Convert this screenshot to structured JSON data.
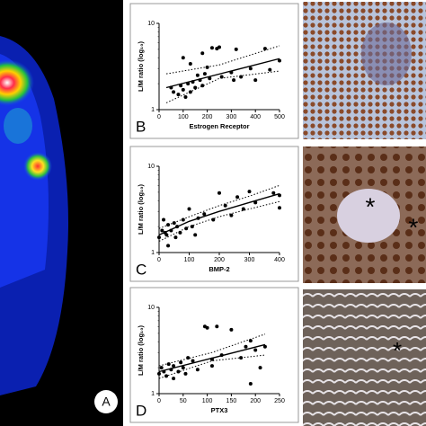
{
  "panel_a_label": "A",
  "chart_data": [
    {
      "type": "scatter",
      "label": "B",
      "xlabel": "Estrogen Receptor",
      "ylabel": "L/M ratio (log₁₀)",
      "xlim": [
        0,
        500
      ],
      "xticks": [
        0,
        100,
        200,
        300,
        400,
        500
      ],
      "ylim": [
        1,
        10
      ],
      "yticks": [
        1,
        10
      ],
      "log_y": true,
      "points": {
        "x": [
          50,
          60,
          80,
          90,
          100,
          110,
          120,
          130,
          140,
          150,
          160,
          170,
          180,
          190,
          200,
          210,
          220,
          240,
          250,
          130,
          100,
          180,
          260,
          300,
          310,
          320,
          340,
          380,
          400,
          440,
          460,
          500
        ],
        "y": [
          1.8,
          1.6,
          1.5,
          1.9,
          1.7,
          1.4,
          2.0,
          1.6,
          2.1,
          1.8,
          2.5,
          2.2,
          1.9,
          2.6,
          3.1,
          2.3,
          5.2,
          5.1,
          5.3,
          3.4,
          4.0,
          4.5,
          2.4,
          2.7,
          2.2,
          5.0,
          2.4,
          3.0,
          2.2,
          5.1,
          2.9,
          3.7
        ]
      },
      "fit": {
        "x": [
          30,
          500
        ],
        "y": [
          1.8,
          3.9
        ]
      },
      "ci_upper": {
        "x": [
          30,
          250,
          500
        ],
        "y": [
          2.6,
          3.3,
          5.5
        ]
      },
      "ci_lower": {
        "x": [
          30,
          250,
          500
        ],
        "y": [
          1.2,
          2.3,
          2.8
        ]
      }
    },
    {
      "type": "scatter",
      "label": "C",
      "xlabel": "BMP-2",
      "ylabel": "L/M ratio (log₁₀)",
      "xlim": [
        0,
        400
      ],
      "xticks": [
        0,
        100,
        200,
        300,
        400
      ],
      "ylim": [
        1,
        10
      ],
      "yticks": [
        1,
        10
      ],
      "log_y": true,
      "points": {
        "x": [
          0,
          10,
          15,
          20,
          25,
          30,
          40,
          50,
          55,
          60,
          70,
          80,
          90,
          100,
          110,
          120,
          130,
          150,
          180,
          200,
          220,
          240,
          260,
          280,
          300,
          320,
          380,
          400,
          400,
          30
        ],
        "y": [
          1.5,
          1.8,
          2.4,
          1.7,
          1.6,
          2.1,
          1.8,
          2.2,
          1.5,
          2.0,
          1.7,
          2.4,
          1.9,
          3.2,
          2.0,
          1.6,
          2.5,
          2.8,
          2.4,
          4.9,
          3.5,
          2.7,
          4.4,
          3.2,
          5.1,
          3.8,
          4.9,
          4.6,
          3.3,
          1.2
        ]
      },
      "fit": {
        "x": [
          0,
          100,
          200,
          300,
          400
        ],
        "y": [
          1.6,
          2.3,
          3.0,
          3.8,
          4.8
        ]
      },
      "ci_upper": {
        "x": [
          0,
          100,
          200,
          300,
          400
        ],
        "y": [
          1.9,
          2.6,
          3.5,
          4.5,
          6.0
        ]
      },
      "ci_lower": {
        "x": [
          0,
          100,
          200,
          300,
          400
        ],
        "y": [
          1.35,
          2.0,
          2.6,
          3.2,
          3.9
        ]
      }
    },
    {
      "type": "scatter",
      "label": "D",
      "xlabel": "PTX3",
      "ylabel": "L/M ratio (log₁₀)",
      "xlim": [
        0,
        250
      ],
      "xticks": [
        0,
        50,
        100,
        150,
        200,
        250
      ],
      "ylim": [
        1,
        10
      ],
      "yticks": [
        1,
        10
      ],
      "log_y": true,
      "points": {
        "x": [
          0,
          5,
          10,
          15,
          20,
          25,
          30,
          40,
          45,
          50,
          55,
          60,
          70,
          80,
          95,
          100,
          110,
          110,
          130,
          150,
          170,
          180,
          190,
          200,
          210,
          220,
          190,
          30,
          120
        ],
        "y": [
          1.7,
          2.0,
          1.8,
          1.6,
          2.2,
          1.9,
          2.1,
          1.8,
          2.3,
          2.0,
          1.7,
          2.6,
          2.4,
          1.9,
          6.0,
          5.8,
          2.5,
          2.1,
          2.8,
          5.5,
          2.6,
          3.5,
          4.1,
          3.2,
          2.0,
          3.5,
          1.3,
          1.5,
          6.0
        ]
      },
      "fit": {
        "x": [
          0,
          220
        ],
        "y": [
          1.8,
          3.7
        ]
      },
      "ci_upper": {
        "x": [
          0,
          110,
          220
        ],
        "y": [
          2.1,
          3.0,
          4.9
        ]
      },
      "ci_lower": {
        "x": [
          0,
          110,
          220
        ],
        "y": [
          1.5,
          2.4,
          2.8
        ]
      }
    }
  ]
}
